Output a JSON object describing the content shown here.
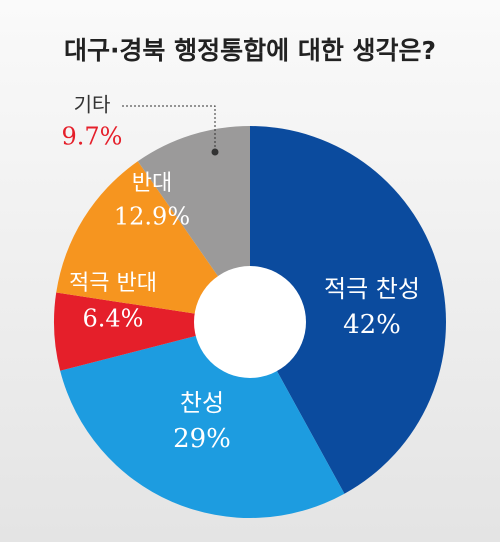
{
  "chart_data": {
    "type": "donut",
    "title": "대구·경북 행정통합에 대한 생각은?",
    "categories": [
      "적극 찬성",
      "찬성",
      "적극 반대",
      "반대",
      "기타"
    ],
    "values": [
      42,
      29,
      6.4,
      12.9,
      9.7
    ],
    "value_labels": [
      "42%",
      "29%",
      "6.4%",
      "12.9%",
      "9.7%"
    ],
    "colors": [
      "#0b4b9e",
      "#1d9ce0",
      "#e51f2a",
      "#f6951f",
      "#9b9a9a"
    ]
  }
}
